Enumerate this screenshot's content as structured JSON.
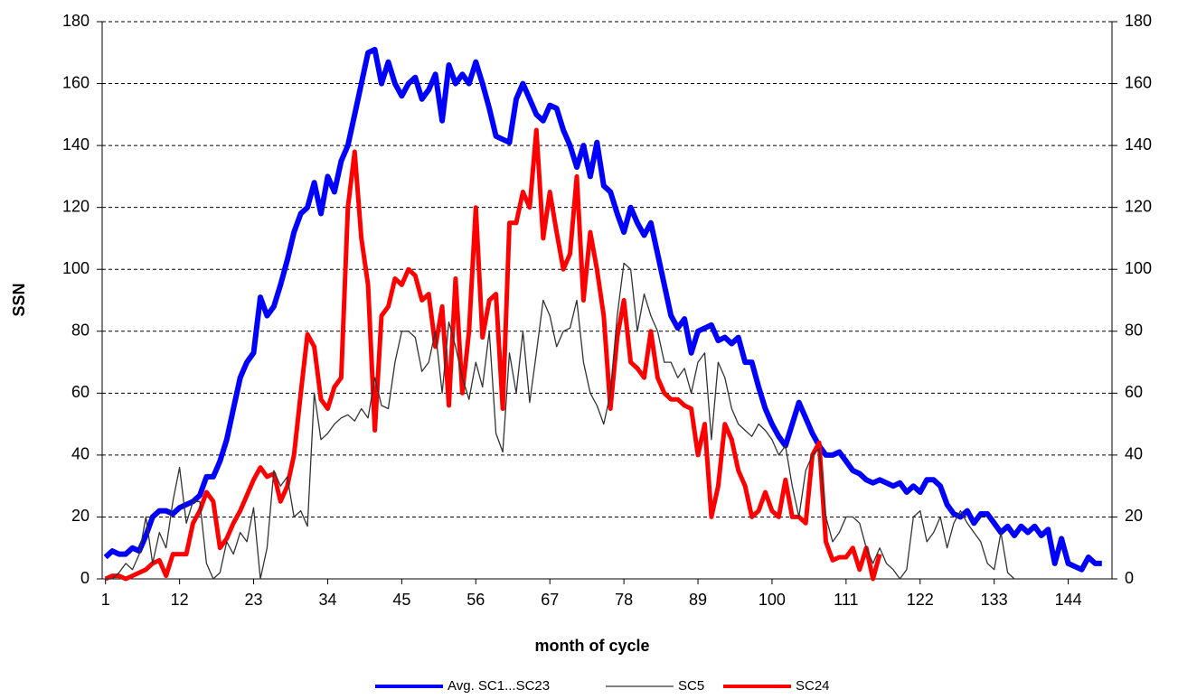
{
  "chart_data": {
    "type": "line",
    "xlabel": "month of cycle",
    "ylabel": "SSN",
    "x": [
      1,
      2,
      3,
      4,
      5,
      6,
      7,
      8,
      9,
      10,
      11,
      12,
      13,
      14,
      15,
      16,
      17,
      18,
      19,
      20,
      21,
      22,
      23,
      24,
      25,
      26,
      27,
      28,
      29,
      30,
      31,
      32,
      33,
      34,
      35,
      36,
      37,
      38,
      39,
      40,
      41,
      42,
      43,
      44,
      45,
      46,
      47,
      48,
      49,
      50,
      51,
      52,
      53,
      54,
      55,
      56,
      57,
      58,
      59,
      60,
      61,
      62,
      63,
      64,
      65,
      66,
      67,
      68,
      69,
      70,
      71,
      72,
      73,
      74,
      75,
      76,
      77,
      78,
      79,
      80,
      81,
      82,
      83,
      84,
      85,
      86,
      87,
      88,
      89,
      90,
      91,
      92,
      93,
      94,
      95,
      96,
      97,
      98,
      99,
      100,
      101,
      102,
      103,
      104,
      105,
      106,
      107,
      108,
      109,
      110,
      111,
      112,
      113,
      114,
      115,
      116,
      117,
      118,
      119,
      120,
      121,
      122,
      123,
      124,
      125,
      126,
      127,
      128,
      129,
      130,
      131,
      132,
      133,
      134,
      135,
      136,
      137,
      138,
      139,
      140,
      141,
      142,
      143,
      144,
      145,
      146,
      147,
      148,
      149,
      150
    ],
    "xlim": [
      0.5,
      150.5
    ],
    "xticks": [
      1,
      12,
      23,
      34,
      45,
      56,
      67,
      78,
      89,
      100,
      111,
      122,
      133,
      144
    ],
    "ylim": [
      0,
      180
    ],
    "yticks": [
      0,
      20,
      40,
      60,
      80,
      100,
      120,
      140,
      160,
      180
    ],
    "y2lim": [
      0,
      180
    ],
    "y2ticks": [
      0,
      20,
      40,
      60,
      80,
      100,
      120,
      140,
      160,
      180
    ],
    "grid": true,
    "legend": "bottom",
    "series": [
      {
        "name": "Avg. SC1...SC23",
        "color": "#0000ff",
        "width": 6,
        "values": [
          7,
          9,
          8,
          8,
          10,
          9,
          14,
          20,
          22,
          22,
          21,
          23,
          24,
          25,
          27,
          33,
          33,
          38,
          45,
          55,
          65,
          70,
          73,
          91,
          85,
          88,
          95,
          103,
          112,
          118,
          120,
          128,
          118,
          130,
          125,
          135,
          140,
          150,
          160,
          170,
          171,
          160,
          167,
          160,
          156,
          160,
          162,
          155,
          158,
          163,
          148,
          166,
          160,
          163,
          160,
          167,
          160,
          152,
          143,
          142,
          141,
          155,
          160,
          155,
          150,
          148,
          153,
          152,
          145,
          140,
          133,
          140,
          130,
          141,
          127,
          125,
          118,
          112,
          120,
          115,
          111,
          115,
          105,
          95,
          85,
          81,
          84,
          73,
          80,
          81,
          82,
          77,
          78,
          76,
          78,
          70,
          70,
          62,
          55,
          50,
          46,
          43,
          50,
          57,
          52,
          47,
          43,
          40,
          40,
          41,
          38,
          35,
          34,
          32,
          31,
          32,
          31,
          30,
          31,
          28,
          30,
          28,
          32,
          32,
          30,
          24,
          21,
          20,
          22,
          18,
          21,
          21,
          18,
          15,
          17,
          14,
          17,
          15,
          17,
          14,
          16,
          5,
          13,
          5,
          4,
          3,
          7,
          5,
          5,
          null
        ]
      },
      {
        "name": "SC5",
        "color": "#333333",
        "width": 1.3,
        "values": [
          0,
          0,
          2,
          5,
          3,
          8,
          20,
          5,
          15,
          10,
          25,
          36,
          18,
          25,
          25,
          5,
          0,
          2,
          12,
          8,
          15,
          12,
          23,
          0,
          10,
          35,
          30,
          33,
          20,
          22,
          17,
          60,
          45,
          47,
          50,
          52,
          53,
          51,
          55,
          52,
          65,
          56,
          55,
          70,
          80,
          80,
          78,
          67,
          70,
          80,
          60,
          83,
          75,
          65,
          58,
          70,
          62,
          80,
          47,
          41,
          73,
          60,
          80,
          57,
          73,
          90,
          85,
          75,
          80,
          81,
          90,
          70,
          60,
          56,
          50,
          60,
          85,
          102,
          100,
          80,
          92,
          85,
          80,
          70,
          70,
          65,
          68,
          60,
          70,
          73,
          45,
          70,
          65,
          55,
          50,
          48,
          46,
          50,
          48,
          45,
          40,
          43,
          30,
          20,
          35,
          40,
          42,
          20,
          12,
          15,
          20,
          20,
          18,
          10,
          5,
          10,
          5,
          3,
          0,
          3,
          20,
          22,
          12,
          15,
          20,
          10,
          18,
          22,
          18,
          15,
          12,
          5,
          3,
          15,
          2,
          0,
          0,
          null,
          null,
          null,
          null,
          null,
          null,
          null,
          null,
          null,
          null,
          null,
          null,
          null
        ]
      },
      {
        "name": "SC24",
        "color": "#ff0000",
        "width": 5,
        "values": [
          0,
          1,
          1,
          0,
          1,
          2,
          3,
          5,
          6,
          1,
          8,
          8,
          8,
          18,
          22,
          28,
          25,
          10,
          13,
          18,
          22,
          27,
          32,
          36,
          33,
          34,
          25,
          30,
          40,
          60,
          79,
          75,
          58,
          55,
          62,
          65,
          120,
          138,
          110,
          95,
          48,
          85,
          88,
          97,
          95,
          100,
          98,
          90,
          92,
          75,
          88,
          56,
          97,
          60,
          80,
          120,
          78,
          90,
          92,
          55,
          115,
          115,
          125,
          120,
          145,
          110,
          125,
          112,
          100,
          105,
          130,
          90,
          112,
          100,
          85,
          55,
          78,
          90,
          70,
          68,
          65,
          80,
          65,
          60,
          58,
          58,
          56,
          55,
          40,
          50,
          20,
          30,
          50,
          45,
          35,
          30,
          20,
          22,
          28,
          22,
          20,
          32,
          20,
          20,
          18,
          40,
          44,
          12,
          6,
          7,
          7,
          10,
          3,
          10,
          0,
          8,
          null,
          null,
          null,
          null,
          null,
          null,
          null,
          null,
          null,
          null,
          null,
          null,
          null,
          null,
          null,
          null,
          null,
          null,
          null,
          null,
          null,
          null,
          null,
          null,
          null,
          null,
          null,
          null,
          null,
          null,
          null,
          null,
          null,
          null
        ]
      }
    ]
  }
}
